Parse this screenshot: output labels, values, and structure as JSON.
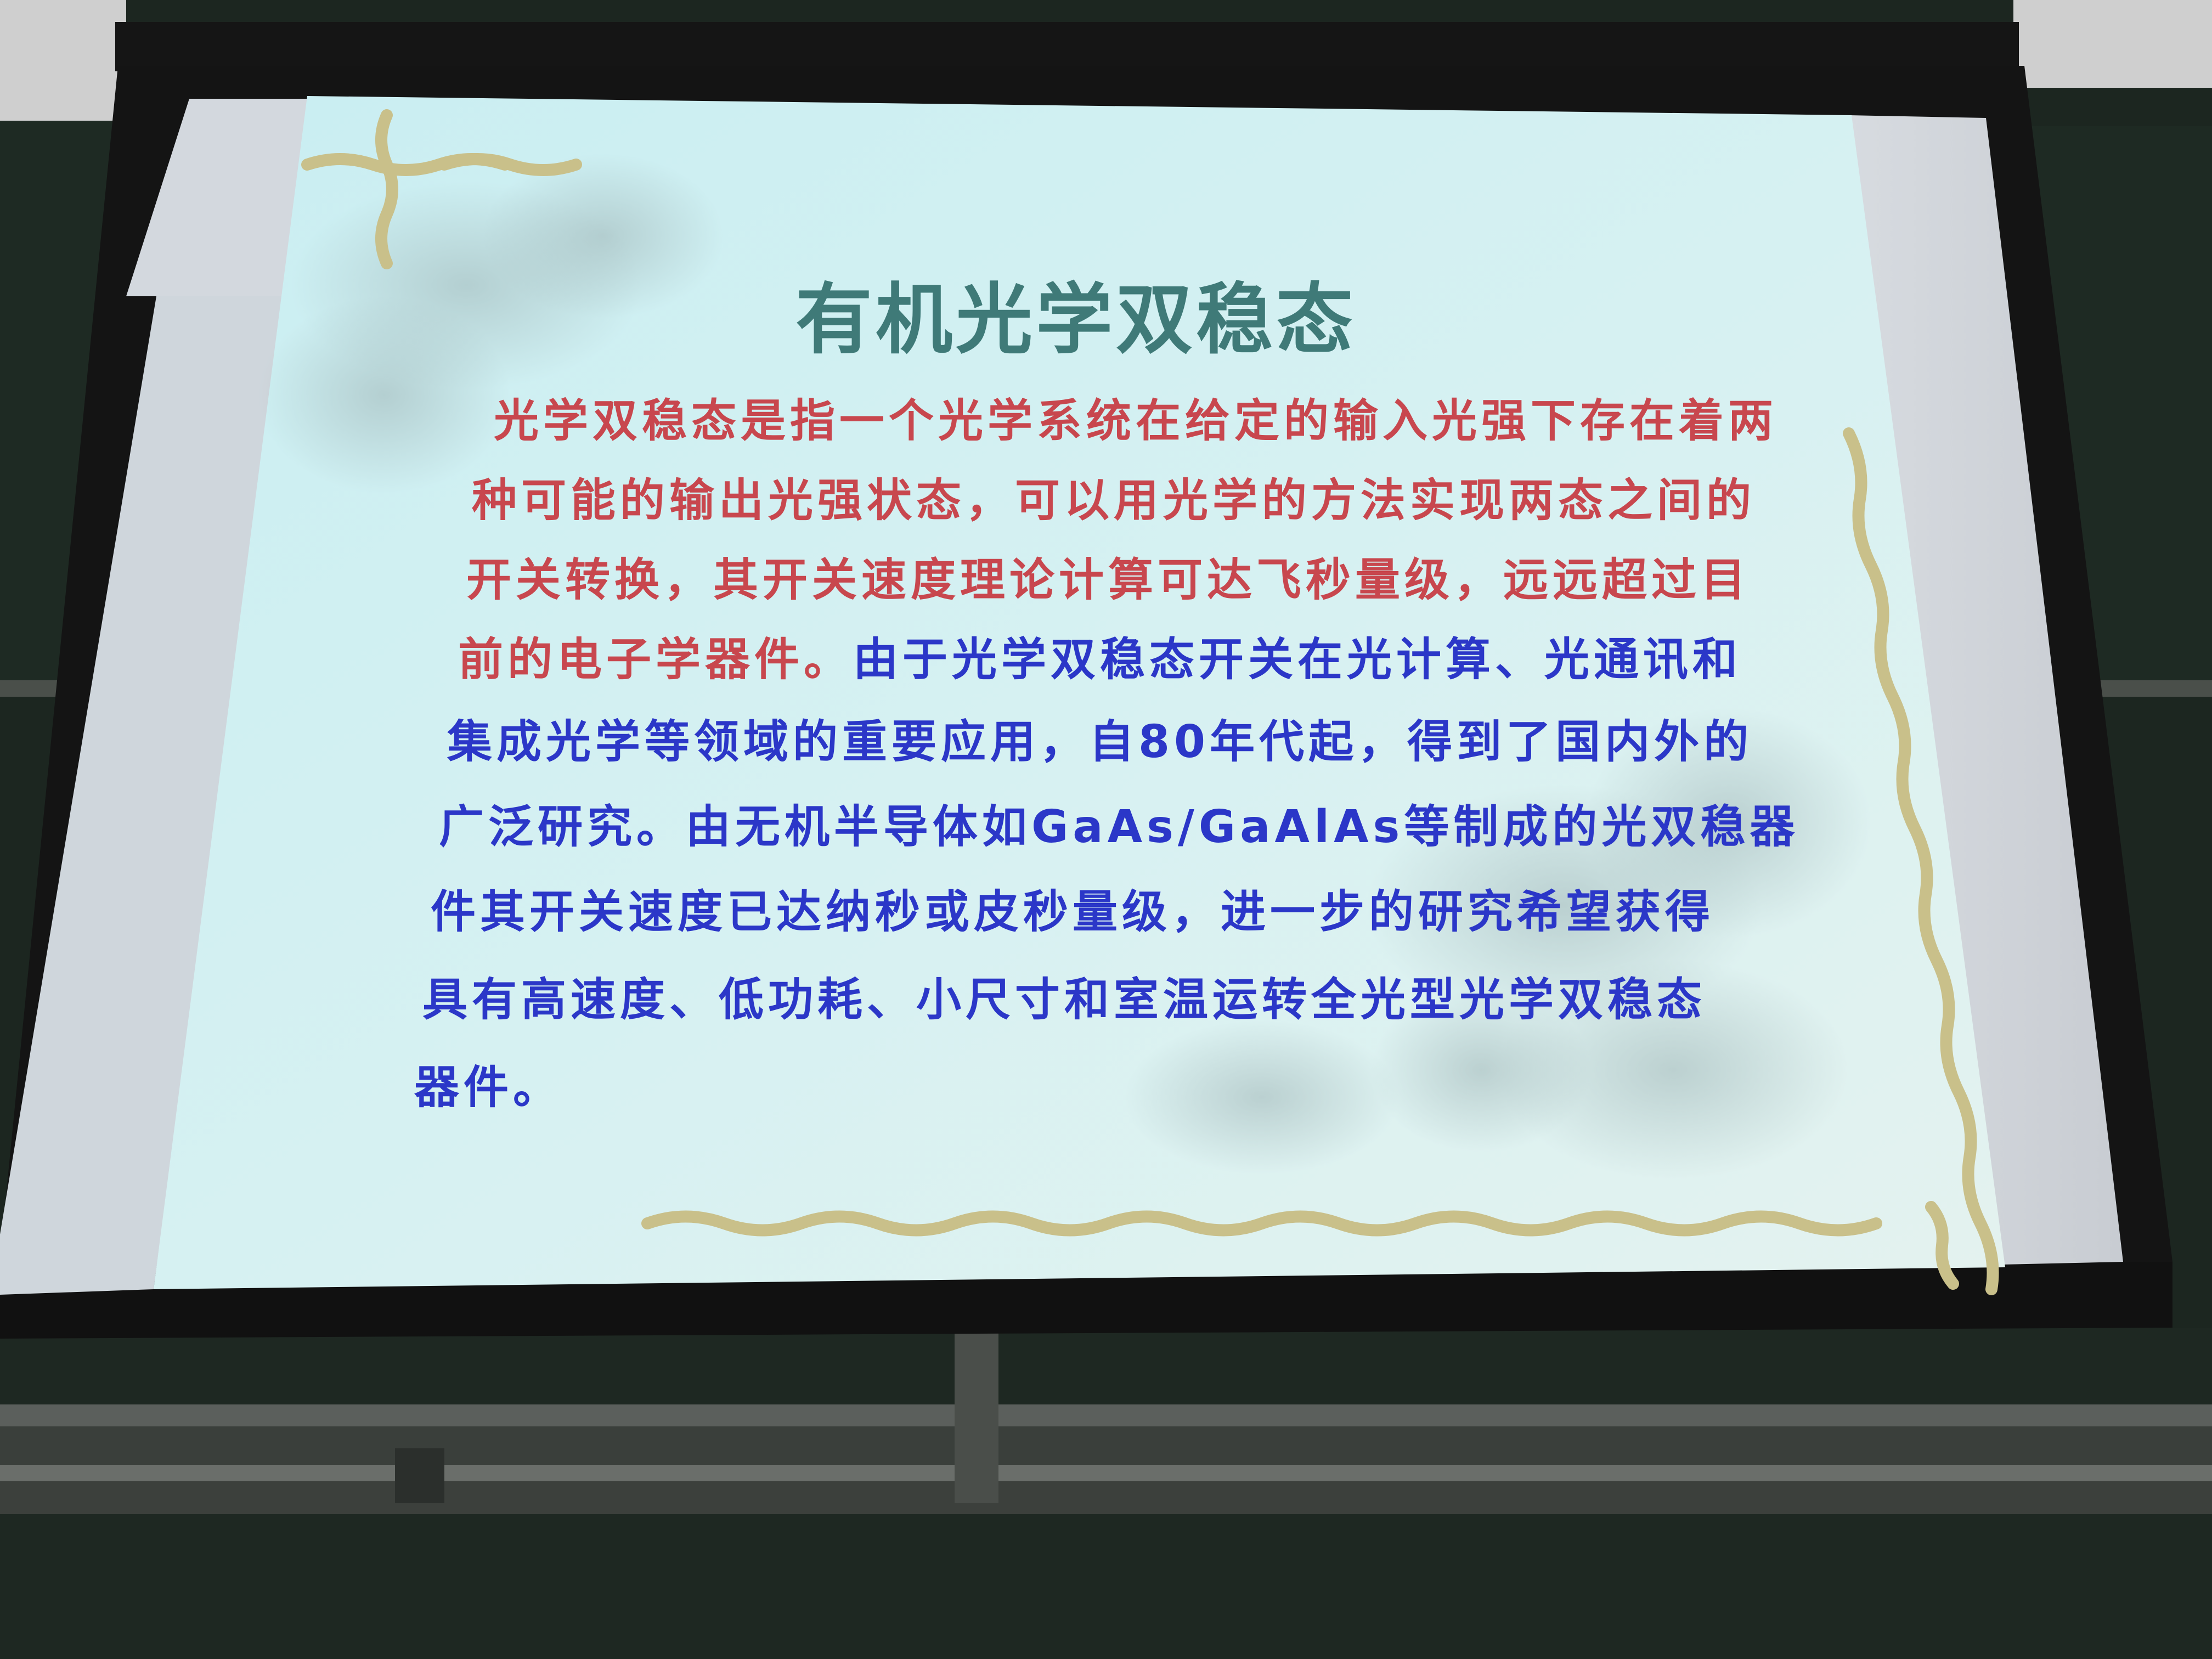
{
  "slide": {
    "title": "有机光学双稳态",
    "lines": [
      {
        "segments": [
          {
            "text": "光学双稳态是指一个光学系统在给定的输入光强下存在着两",
            "color": "red"
          }
        ]
      },
      {
        "segments": [
          {
            "text": "种可能的输出光强状态，可以用光学的方法实现两态之间的",
            "color": "red"
          }
        ]
      },
      {
        "segments": [
          {
            "text": "开关转换，其开关速度理论计算可达飞秒量级，远远超过目",
            "color": "red"
          }
        ]
      },
      {
        "segments": [
          {
            "text": "前的电子学器件。",
            "color": "red"
          },
          {
            "text": "由于光学双稳态开关在光计算、光通讯和",
            "color": "blue"
          }
        ]
      },
      {
        "segments": [
          {
            "text": "集成光学等领域的重要应用，自80年代起，得到了国内外的",
            "color": "blue"
          }
        ]
      },
      {
        "segments": [
          {
            "text": "广泛研究。由无机半导体如GaAs/GaAlAs等制成的光双稳器",
            "color": "blue"
          }
        ]
      },
      {
        "segments": [
          {
            "text": "件其开关速度已达纳秒或皮秒量级，进一步的研究希望获得",
            "color": "blue"
          }
        ]
      },
      {
        "segments": [
          {
            "text": "具有高速度、低功耗、小尺寸和室温运转全光型光学双稳态",
            "color": "blue"
          }
        ]
      },
      {
        "segments": [
          {
            "text": "器件。",
            "color": "blue"
          }
        ]
      }
    ],
    "colors": {
      "title": "#3f7a78",
      "red_text": "#c8474e",
      "blue_text": "#2b37c8",
      "slide_background": "#cdeef0",
      "border_ornament": "#c9c08a",
      "screen_frame": "#151515",
      "chalkboard": "#1c2620"
    }
  }
}
